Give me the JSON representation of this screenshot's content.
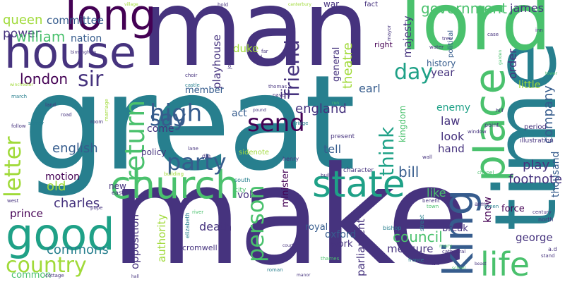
{
  "palette": {
    "dark_purple": "#440154",
    "indigo": "#46337e",
    "blue": "#365c8d",
    "steel": "#277f8e",
    "teal": "#1fa187",
    "green": "#4ac16d",
    "lime": "#a0da39",
    "yellow": "#d9e021"
  },
  "words": {
    "man": "man",
    "great": "great",
    "make": "make",
    "time": "time",
    "lord": "lord",
    "house": "house",
    "long": "long",
    "queen": "queen",
    "power": "power",
    "committee": "committee",
    "william": "william",
    "nation": "nation",
    "london": "london",
    "sir": "sir",
    "letter": "letter",
    "high": "high",
    "say": "say",
    "return": "return",
    "come": "come",
    "party": "party",
    "send": "send",
    "church": "church",
    "state": "state",
    "good": "good",
    "country": "country",
    "common": "common",
    "commons": "commons",
    "charles": "charles",
    "prince": "prince",
    "english": "english",
    "motion": "motion",
    "old": "old",
    "day": "day",
    "government": "government",
    "james": "james",
    "friend": "friend",
    "theatre": "theatre",
    "duke": "duke",
    "playhouse": "playhouse",
    "place": "place",
    "king": "king",
    "life": "life",
    "person": "person",
    "think": "think",
    "england": "england",
    "bill": "bill",
    "tell": "tell",
    "earl": "earl",
    "iii": "iii",
    "act": "act",
    "member": "member",
    "law": "law",
    "look": "look",
    "hand": "hand",
    "enemy": "enemy",
    "play": "play",
    "footnote": "footnote",
    "force": "force",
    "company": "company",
    "thousand": "thousand",
    "order": "order",
    "little": "little",
    "year": "year",
    "history": "history",
    "majesty": "majesty",
    "general": "general",
    "right": "right",
    "council": "council",
    "measure": "measure",
    "george": "george",
    "parliament": "parliament",
    "oxford": "oxford",
    "work": "work",
    "death": "death",
    "authority": "authority",
    "opposition": "opposition",
    "minister": "minister",
    "royal": "royal",
    "vol": "vol",
    "kingdom": "kingdom",
    "like": "like",
    "know": "know",
    "break": "break",
    "war": "war",
    "fact": "fact",
    "policy": "policy",
    "new": "new",
    "east": "east",
    "cromwell": "cromwell",
    "elizabeth": "elizabeth",
    "sidenote": "sidenote",
    "city": "city",
    "south": "south",
    "street": "street",
    "political": "political",
    "character": "character",
    "present": "present",
    "bishop": "bishop",
    "thames": "thames",
    "henry": "henry",
    "die": "die",
    "lane": "lane",
    "building": "building",
    "army": "army",
    "green": "green",
    "north": "north",
    "century": "century",
    "period": "period",
    "illustration": "illustration",
    "ad": "a.d",
    "stand": "stand",
    "mary": "mary",
    "cathedral": "cathedral",
    "france": "france",
    "roman": "roman",
    "water": "water",
    "tree": "tree",
    "inn": "inn",
    "case": "case",
    "canterbury": "canterbury",
    "village": "village",
    "hold": "hold",
    "mayor": "mayor",
    "journal": "journal",
    "far": "far",
    "end": "end",
    "castle": "castle",
    "choir": "choir",
    "thomas": "thomas",
    "nave": "nave",
    "bridge": "bridge",
    "point": "point",
    "hill": "hill",
    "window": "window",
    "wall": "wall",
    "build": "build",
    "chapel": "chapel",
    "town": "town",
    "benefit": "benefit",
    "way": "way",
    "surrey": "surrey",
    "road": "road",
    "room": "room",
    "land": "land",
    "march": "march",
    "follow": "follow",
    "pope": "pope",
    "west": "west",
    "cottage": "cottage",
    "winchester": "winchester",
    "birmingham": "birmingham",
    "marriage": "marriage",
    "garden": "garden",
    "tower": "tower",
    "pound": "pound",
    "run": "run",
    "river": "river",
    "court": "court",
    "hall": "hall",
    "manor": "manor",
    "isle": "isle",
    "school": "school",
    "beast": "beast"
  }
}
